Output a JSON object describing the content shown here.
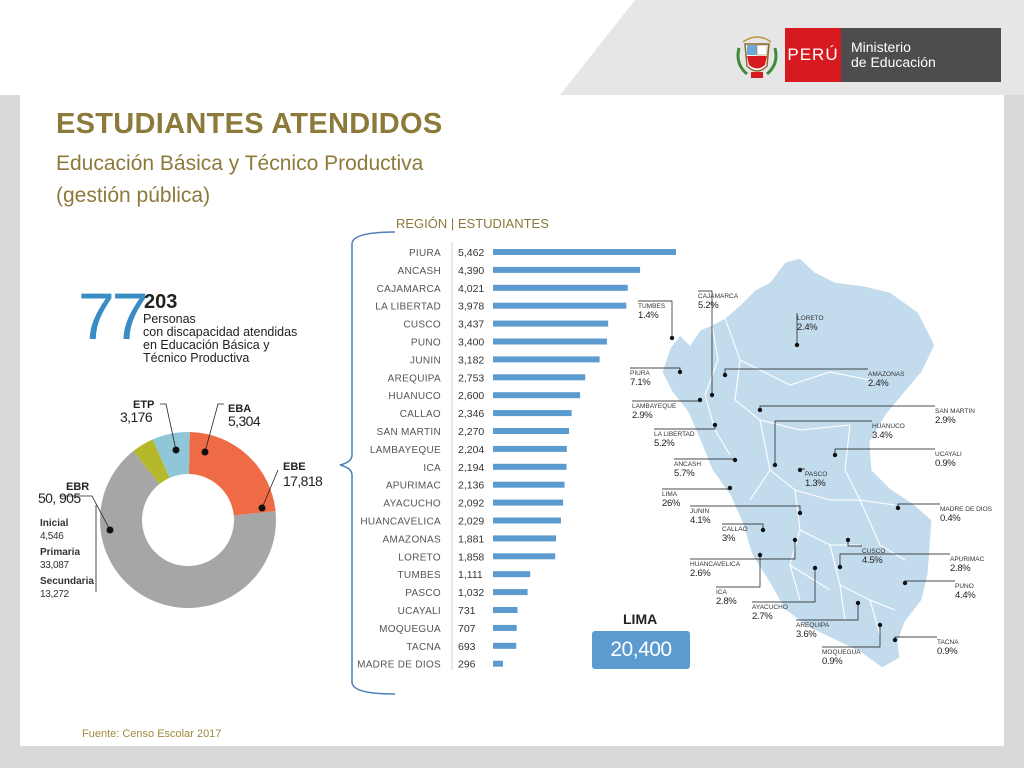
{
  "header": {
    "country": "PERÚ",
    "ministry_line1": "Ministerio",
    "ministry_line2": "de Educación",
    "crest_text": "REPUBLICA DEL PERU"
  },
  "title": "ESTUDIANTES ATENDIDOS",
  "subtitle": "Educación Básica y Técnico Productiva (gestión pública)",
  "summary": {
    "big_number_a": "77",
    "big_number_b": "203",
    "description": "Personas\ncon discapacidad atendidas\nen Educación Básica y\nTécnico Productiva"
  },
  "lima": {
    "label": "LIMA",
    "value": "20,400"
  },
  "source": "Fuente: Censo Escolar 2017",
  "colors": {
    "bar": "#5b9bd0",
    "title": "#8c7a3a",
    "ebr": "#a6a6a6",
    "ebe": "#ef6b45",
    "eba": "#8fc7d9",
    "etp": "#b5b82a",
    "map": "#c2dcee"
  },
  "chart_data": [
    {
      "type": "bar",
      "orientation": "horizontal",
      "title": "REGIÓN | ESTUDIANTES",
      "categories": [
        "PIURA",
        "ANCASH",
        "CAJAMARCA",
        "LA LIBERTAD",
        "CUSCO",
        "PUNO",
        "JUNIN",
        "AREQUIPA",
        "HUANUCO",
        "CALLAO",
        "SAN MARTIN",
        "LAMBAYEQUE",
        "ICA",
        "APURIMAC",
        "AYACUCHO",
        "HUANCAVELICA",
        "AMAZONAS",
        "LORETO",
        "TUMBES",
        "PASCO",
        "UCAYALI",
        "MOQUEGUA",
        "TACNA",
        "MADRE DE DIOS"
      ],
      "values": [
        5462,
        4390,
        4021,
        3978,
        3437,
        3400,
        3182,
        2753,
        2600,
        2346,
        2270,
        2204,
        2194,
        2136,
        2092,
        2029,
        1881,
        1858,
        1111,
        1032,
        731,
        707,
        693,
        296
      ],
      "value_labels": [
        "5,462",
        "4,390",
        "4,021",
        "3,978",
        "3,437",
        "3,400",
        "3,182",
        "2,753",
        "2,600",
        "2,346",
        "2,270",
        "2,204",
        "2,194",
        "2,136",
        "2,092",
        "2,029",
        "1,881",
        "1,858",
        "1,111",
        "1,032",
        "731",
        "707",
        "693",
        "296"
      ]
    },
    {
      "type": "pie",
      "donut": true,
      "slices": [
        {
          "name": "EBE",
          "value": 17818,
          "label": "17,818",
          "color": "#ef6b45"
        },
        {
          "name": "EBR",
          "value": 50905,
          "label": "50, 905",
          "color": "#a6a6a6",
          "breakdown": [
            {
              "name": "Inicial",
              "label": "4,546"
            },
            {
              "name": "Primaria",
              "label": "33,087"
            },
            {
              "name": "Secundaria",
              "label": "13,272"
            }
          ]
        },
        {
          "name": "ETP",
          "value": 3176,
          "label": "3,176",
          "color": "#b5b82a"
        },
        {
          "name": "EBA",
          "value": 5304,
          "label": "5,304",
          "color": "#8fc7d9"
        }
      ]
    },
    {
      "type": "map",
      "labels": [
        {
          "name": "TUMBES",
          "pct": "1.4%"
        },
        {
          "name": "CAJAMARCA",
          "pct": "5.2%"
        },
        {
          "name": "LORETO",
          "pct": "2.4%"
        },
        {
          "name": "PIURA",
          "pct": "7.1%"
        },
        {
          "name": "AMAZONAS",
          "pct": "2.4%"
        },
        {
          "name": "LAMBAYEQUE",
          "pct": "2.9%"
        },
        {
          "name": "SAN MARTIN",
          "pct": "2.9%"
        },
        {
          "name": "LA LIBERTAD",
          "pct": "5.2%"
        },
        {
          "name": "HUANUCO",
          "pct": "3.4%"
        },
        {
          "name": "UCAYALI",
          "pct": "0.9%"
        },
        {
          "name": "ANCASH",
          "pct": "5.7%"
        },
        {
          "name": "PASCO",
          "pct": "1.3%"
        },
        {
          "name": "LIMA",
          "pct": "26%"
        },
        {
          "name": "MADRE DE DIOS",
          "pct": "0.4%"
        },
        {
          "name": "JUNIN",
          "pct": "4.1%"
        },
        {
          "name": "CALLAO",
          "pct": "3%"
        },
        {
          "name": "CUSCO",
          "pct": "4.5%"
        },
        {
          "name": "HUANCAVELICA",
          "pct": "2.6%"
        },
        {
          "name": "APURIMAC",
          "pct": "2.8%"
        },
        {
          "name": "ICA",
          "pct": "2.8%"
        },
        {
          "name": "PUNO",
          "pct": "4.4%"
        },
        {
          "name": "AYACUCHO",
          "pct": "2.7%"
        },
        {
          "name": "AREQUIPA",
          "pct": "3.6%"
        },
        {
          "name": "TACNA",
          "pct": "0.9%"
        },
        {
          "name": "MOQUEGUA",
          "pct": "0.9%"
        }
      ]
    }
  ]
}
